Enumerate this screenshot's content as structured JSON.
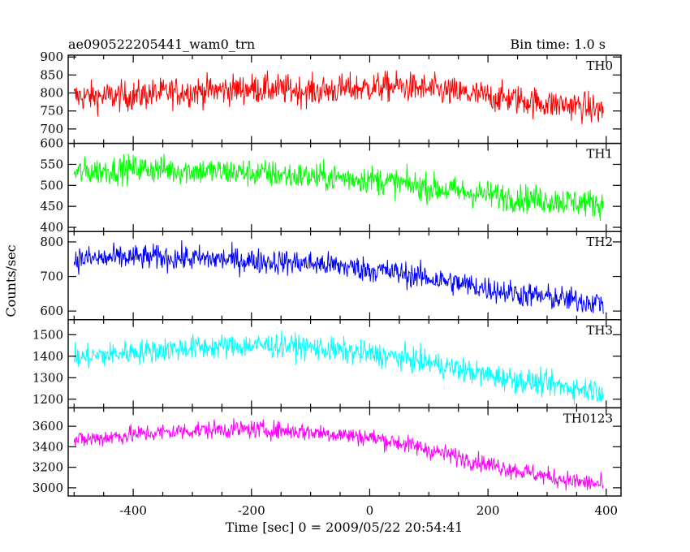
{
  "chart_data": {
    "type": "line",
    "title": "ae090522205441_wam0_trn",
    "subtitle": "Bin time: 1.0 s",
    "xlabel": "Time [sec] 0 = 2009/05/22 20:54:41",
    "ylabel": "Counts/sec",
    "xlim": [
      -510,
      425
    ],
    "x_ticks": [
      -400,
      -200,
      0,
      200,
      400
    ],
    "grid": false,
    "series": [
      {
        "name": "TH0",
        "color": "#ff0000",
        "ylim": [
          660,
          905
        ],
        "y_ticks": [
          700,
          750,
          800,
          850,
          900
        ],
        "x": [
          -500,
          -450,
          -400,
          -350,
          -300,
          -250,
          -200,
          -150,
          -100,
          -50,
          0,
          50,
          100,
          150,
          200,
          250,
          300,
          350,
          395
        ],
        "trend": [
          790,
          790,
          792,
          800,
          805,
          808,
          812,
          810,
          805,
          810,
          815,
          818,
          810,
          800,
          790,
          782,
          770,
          765,
          750
        ],
        "noise": 40
      },
      {
        "name": "TH1",
        "color": "#00ff00",
        "ylim": [
          390,
          600
        ],
        "y_ticks": [
          400,
          450,
          500,
          550,
          600
        ],
        "x": [
          -500,
          -450,
          -400,
          -350,
          -300,
          -250,
          -200,
          -150,
          -100,
          -50,
          0,
          50,
          100,
          150,
          200,
          250,
          300,
          350,
          395
        ],
        "trend": [
          530,
          535,
          540,
          538,
          535,
          532,
          530,
          525,
          520,
          518,
          515,
          505,
          495,
          485,
          478,
          470,
          465,
          460,
          455
        ],
        "noise": 32
      },
      {
        "name": "TH2",
        "color": "#0000ff",
        "ylim": [
          575,
          830
        ],
        "y_ticks": [
          600,
          700,
          800
        ],
        "x": [
          -500,
          -450,
          -400,
          -350,
          -300,
          -250,
          -200,
          -150,
          -100,
          -50,
          0,
          50,
          100,
          150,
          200,
          250,
          300,
          350,
          395
        ],
        "trend": [
          750,
          752,
          755,
          755,
          752,
          750,
          745,
          742,
          738,
          730,
          720,
          710,
          695,
          680,
          665,
          650,
          640,
          630,
          625
        ],
        "noise": 35
      },
      {
        "name": "TH3",
        "color": "#00ffff",
        "ylim": [
          1160,
          1570
        ],
        "y_ticks": [
          1200,
          1300,
          1400,
          1500
        ],
        "x": [
          -500,
          -450,
          -400,
          -350,
          -300,
          -250,
          -200,
          -150,
          -100,
          -50,
          0,
          50,
          100,
          150,
          200,
          250,
          300,
          350,
          395
        ],
        "trend": [
          1390,
          1405,
          1420,
          1430,
          1440,
          1445,
          1450,
          1450,
          1440,
          1425,
          1410,
          1395,
          1370,
          1340,
          1310,
          1290,
          1270,
          1250,
          1240
        ],
        "noise": 55
      },
      {
        "name": "TH0123",
        "color": "#ff00ff",
        "ylim": [
          2920,
          3780
        ],
        "y_ticks": [
          3000,
          3200,
          3400,
          3600
        ],
        "x": [
          -500,
          -450,
          -400,
          -350,
          -300,
          -250,
          -200,
          -150,
          -100,
          -50,
          0,
          50,
          100,
          150,
          200,
          250,
          300,
          350,
          395
        ],
        "trend": [
          3460,
          3490,
          3520,
          3540,
          3560,
          3570,
          3570,
          3560,
          3545,
          3520,
          3490,
          3440,
          3370,
          3300,
          3230,
          3170,
          3110,
          3060,
          3030
        ],
        "noise": 85
      }
    ]
  }
}
